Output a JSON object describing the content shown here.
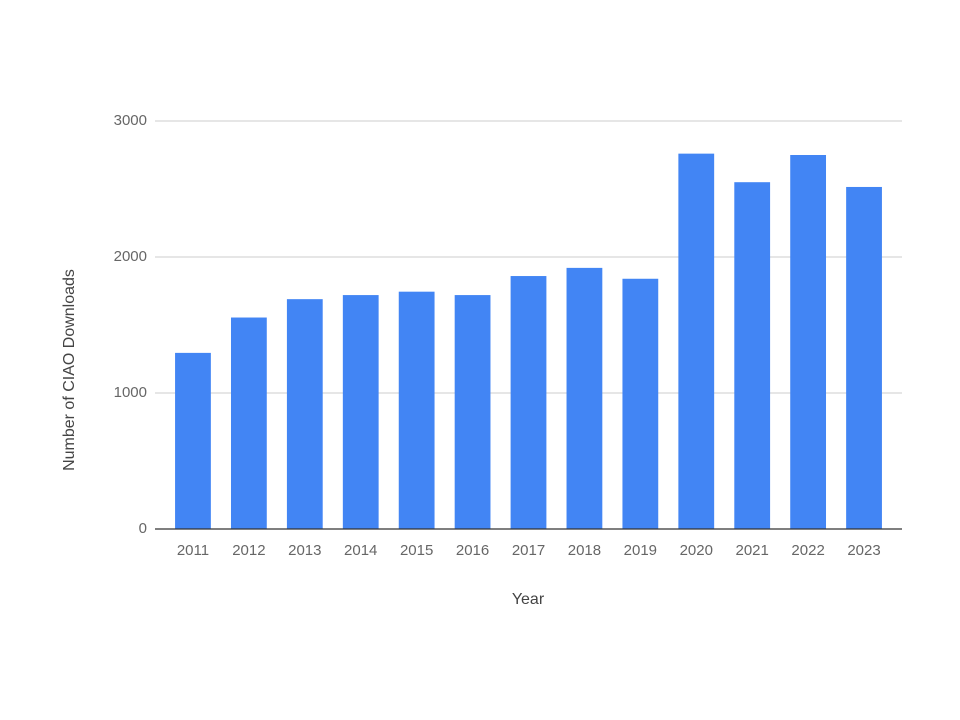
{
  "chart_data": {
    "type": "bar",
    "x_label": "Year",
    "y_label": "Number of CIAO Downloads",
    "categories": [
      "2011",
      "2012",
      "2013",
      "2014",
      "2015",
      "2016",
      "2017",
      "2018",
      "2019",
      "2020",
      "2021",
      "2022",
      "2023"
    ],
    "values": [
      1295,
      1555,
      1690,
      1720,
      1745,
      1720,
      1860,
      1920,
      1840,
      2760,
      2550,
      2750,
      2515
    ],
    "color": "#4285f4",
    "ylim": [
      0,
      3000
    ],
    "yticks": [
      0,
      1000,
      2000,
      3000
    ],
    "grid": true
  }
}
